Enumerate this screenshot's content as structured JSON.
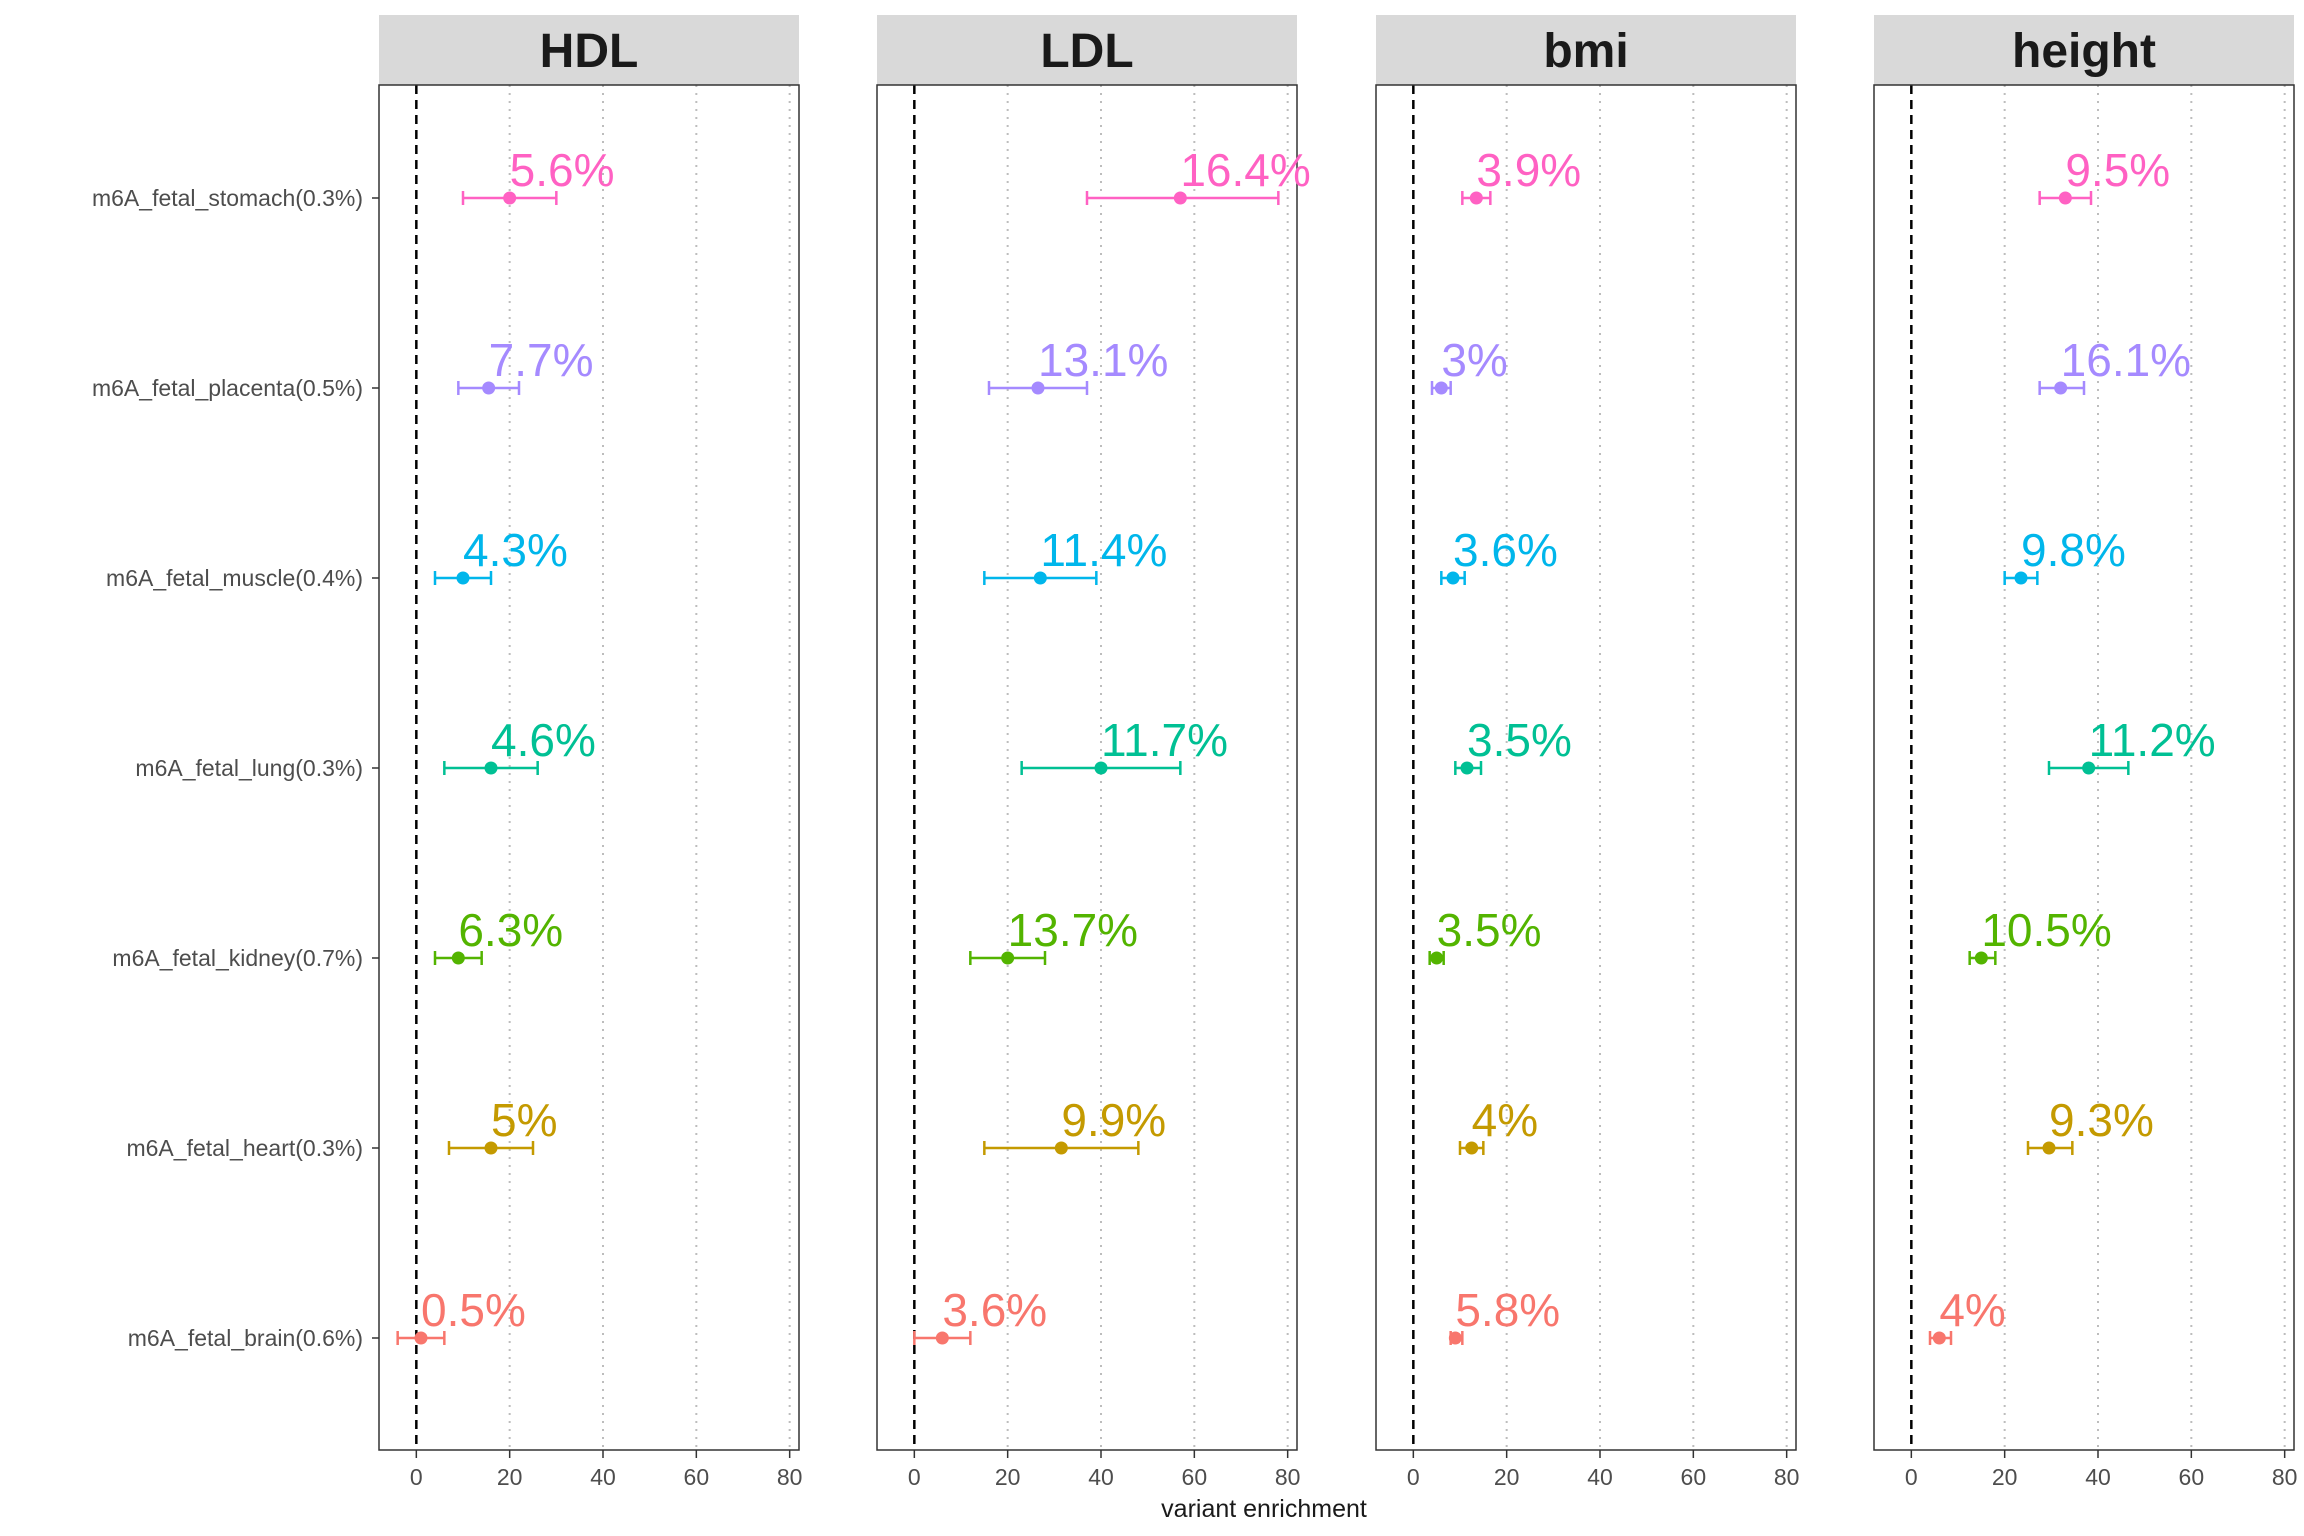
{
  "chart_data": {
    "type": "forest",
    "xlabel": "variant enrichment",
    "ylabel": "",
    "xlim": [
      -8,
      82
    ],
    "xticks": [
      0,
      20,
      40,
      60,
      80
    ],
    "reference_line": 0,
    "grid": "vertical-dotted",
    "categories": [
      "m6A_fetal_stomach(0.3%)",
      "m6A_fetal_placenta(0.5%)",
      "m6A_fetal_muscle(0.4%)",
      "m6A_fetal_lung(0.3%)",
      "m6A_fetal_kidney(0.7%)",
      "m6A_fetal_heart(0.3%)",
      "m6A_fetal_brain(0.6%)"
    ],
    "colors": [
      "#FF61C3",
      "#A58AFF",
      "#00B6EB",
      "#00C094",
      "#53B400",
      "#C49A00",
      "#F8766D"
    ],
    "panels": [
      {
        "title": "HDL",
        "points": [
          {
            "est": 20,
            "lo": 10,
            "hi": 30,
            "label": "5.6%"
          },
          {
            "est": 15.5,
            "lo": 9,
            "hi": 22,
            "label": "7.7%"
          },
          {
            "est": 10,
            "lo": 4,
            "hi": 16,
            "label": "4.3%"
          },
          {
            "est": 16,
            "lo": 6,
            "hi": 26,
            "label": "4.6%"
          },
          {
            "est": 9,
            "lo": 4,
            "hi": 14,
            "label": "6.3%"
          },
          {
            "est": 16,
            "lo": 7,
            "hi": 25,
            "label": "5%"
          },
          {
            "est": 1,
            "lo": -4,
            "hi": 6,
            "label": "0.5%"
          }
        ]
      },
      {
        "title": "LDL",
        "points": [
          {
            "est": 57,
            "lo": 37,
            "hi": 78,
            "label": "16.4%"
          },
          {
            "est": 26.5,
            "lo": 16,
            "hi": 37,
            "label": "13.1%"
          },
          {
            "est": 27,
            "lo": 15,
            "hi": 39,
            "label": "11.4%"
          },
          {
            "est": 40,
            "lo": 23,
            "hi": 57,
            "label": "11.7%"
          },
          {
            "est": 20,
            "lo": 12,
            "hi": 28,
            "label": "13.7%"
          },
          {
            "est": 31.5,
            "lo": 15,
            "hi": 48,
            "label": "9.9%"
          },
          {
            "est": 6,
            "lo": 0,
            "hi": 12,
            "label": "3.6%"
          }
        ]
      },
      {
        "title": "bmi",
        "points": [
          {
            "est": 13.5,
            "lo": 10.5,
            "hi": 16.5,
            "label": "3.9%"
          },
          {
            "est": 6,
            "lo": 4,
            "hi": 8,
            "label": "3%"
          },
          {
            "est": 8.5,
            "lo": 6,
            "hi": 11,
            "label": "3.6%"
          },
          {
            "est": 11.5,
            "lo": 9,
            "hi": 14.5,
            "label": "3.5%"
          },
          {
            "est": 5,
            "lo": 3.5,
            "hi": 6.5,
            "label": "3.5%"
          },
          {
            "est": 12.5,
            "lo": 10,
            "hi": 15,
            "label": "4%"
          },
          {
            "est": 9,
            "lo": 8,
            "hi": 10.5,
            "label": "5.8%"
          }
        ]
      },
      {
        "title": "height",
        "points": [
          {
            "est": 33,
            "lo": 27.5,
            "hi": 38.5,
            "label": "9.5%"
          },
          {
            "est": 32,
            "lo": 27.5,
            "hi": 37,
            "label": "16.1%"
          },
          {
            "est": 23.5,
            "lo": 20,
            "hi": 27,
            "label": "9.8%"
          },
          {
            "est": 38,
            "lo": 29.5,
            "hi": 46.5,
            "label": "11.2%"
          },
          {
            "est": 15,
            "lo": 12.5,
            "hi": 18,
            "label": "10.5%"
          },
          {
            "est": 29.5,
            "lo": 25,
            "hi": 34.5,
            "label": "9.3%"
          },
          {
            "est": 6,
            "lo": 4,
            "hi": 8.5,
            "label": "4%"
          }
        ]
      }
    ]
  }
}
